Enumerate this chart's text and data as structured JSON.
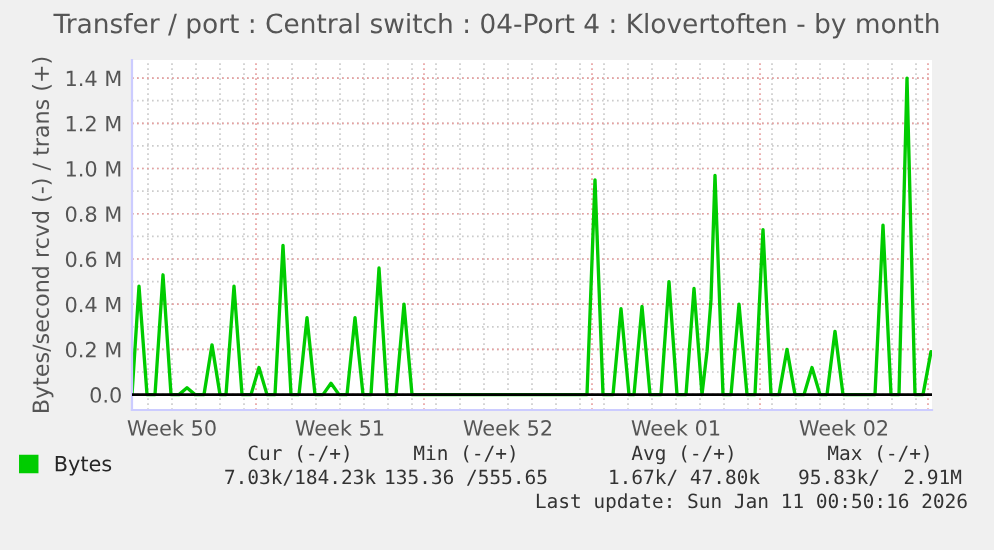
{
  "chart_data": {
    "type": "line",
    "title": "Transfer / port : Central switch : 04-Port 4 : Klovertoften - by month",
    "ylabel": "Bytes/second rcvd (-) / trans (+)",
    "xlim": [
      "2025-12-09T08:00",
      "2026-01-11T16:00"
    ],
    "xticks": [
      {
        "value": "2025-12-11",
        "label": "Week 50"
      },
      {
        "value": "2025-12-18",
        "label": "Week 51"
      },
      {
        "value": "2025-12-25",
        "label": "Week 52"
      },
      {
        "value": "2026-01-01",
        "label": "Week 01"
      },
      {
        "value": "2026-01-08",
        "label": "Week 02"
      }
    ],
    "ylim": [
      -68000,
      1480000
    ],
    "yticks": [
      {
        "value": 0,
        "label": "0.0"
      },
      {
        "value": 200000,
        "label": "0.2 M"
      },
      {
        "value": 400000,
        "label": "0.4 M"
      },
      {
        "value": 600000,
        "label": "0.6 M"
      },
      {
        "value": 800000,
        "label": "0.8 M"
      },
      {
        "value": 1000000,
        "label": "1.0 M"
      },
      {
        "value": 1200000,
        "label": "1.2 M"
      },
      {
        "value": 1400000,
        "label": "1.4 M"
      }
    ],
    "grid": true,
    "legend": "bottom",
    "marker": "none",
    "line_style": "solid",
    "ref_lines": [
      {
        "axis": "y",
        "value": 0,
        "color": "#000000"
      }
    ],
    "series": [
      {
        "name": "Bytes",
        "color": "#00cc00",
        "x": [
          "2025-12-09T08:00",
          "2025-12-09T15:00",
          "2025-12-09T23:00",
          "2025-12-10T07:00",
          "2025-12-10T15:00",
          "2025-12-10T23:00",
          "2025-12-11T07:00",
          "2025-12-11T15:00",
          "2025-12-11T23:00",
          "2025-12-12T08:00",
          "2025-12-12T16:00",
          "2025-12-13T00:00",
          "2025-12-13T06:00",
          "2025-12-13T14:00",
          "2025-12-13T22:00",
          "2025-12-14T07:00",
          "2025-12-14T15:00",
          "2025-12-14T23:00",
          "2025-12-15T07:00",
          "2025-12-15T15:00",
          "2025-12-15T23:00",
          "2025-12-16T07:00",
          "2025-12-16T15:00",
          "2025-12-16T23:00",
          "2025-12-17T07:00",
          "2025-12-17T15:00",
          "2025-12-17T23:00",
          "2025-12-18T07:00",
          "2025-12-18T15:00",
          "2025-12-18T23:00",
          "2025-12-19T07:00",
          "2025-12-19T15:00",
          "2025-12-19T23:00",
          "2025-12-20T08:00",
          "2025-12-20T16:00",
          "2025-12-21T00:00",
          "2025-12-28T07:00",
          "2025-12-28T15:00",
          "2025-12-28T23:00",
          "2025-12-29T09:00",
          "2025-12-29T17:00",
          "2025-12-30T01:00",
          "2025-12-30T06:00",
          "2025-12-30T14:00",
          "2025-12-30T22:00",
          "2025-12-31T09:00",
          "2025-12-31T17:00",
          "2026-01-01T01:00",
          "2026-01-01T10:00",
          "2026-01-01T18:00",
          "2026-01-02T02:00",
          "2026-01-02T07:00",
          "2026-01-02T11:00",
          "2026-01-02T15:00",
          "2026-01-02T23:00",
          "2026-01-03T07:00",
          "2026-01-03T15:00",
          "2026-01-03T23:00",
          "2026-01-04T07:00",
          "2026-01-04T15:00",
          "2026-01-04T23:00",
          "2026-01-05T07:00",
          "2026-01-05T15:00",
          "2026-01-05T23:00",
          "2026-01-06T08:00",
          "2026-01-06T16:00",
          "2026-01-07T00:00",
          "2026-01-07T07:00",
          "2026-01-07T15:00",
          "2026-01-07T23:00",
          "2026-01-09T07:00",
          "2026-01-09T15:00",
          "2026-01-09T23:00",
          "2026-01-10T07:00",
          "2026-01-10T15:00",
          "2026-01-10T23:00",
          "2026-01-11T07:00",
          "2026-01-11T15:00"
        ],
        "values": [
          0,
          480000,
          0,
          0,
          530000,
          0,
          0,
          30000,
          0,
          0,
          220000,
          0,
          0,
          480000,
          0,
          0,
          120000,
          0,
          0,
          660000,
          0,
          0,
          340000,
          0,
          0,
          50000,
          0,
          0,
          340000,
          0,
          0,
          560000,
          0,
          0,
          400000,
          0,
          0,
          950000,
          0,
          0,
          380000,
          0,
          0,
          390000,
          0,
          0,
          500000,
          0,
          0,
          470000,
          0,
          190000,
          420000,
          970000,
          0,
          0,
          400000,
          0,
          0,
          730000,
          0,
          0,
          200000,
          0,
          0,
          120000,
          0,
          0,
          280000,
          0,
          0,
          750000,
          0,
          0,
          1400000,
          0,
          0,
          190000
        ]
      }
    ],
    "annotations": [
      "Cur (-/+)",
      "Min (-/+)",
      "Avg (-/+)",
      "Max (-/+)",
      "7.03k/184.23k",
      "135.36 /555.65",
      "1.67k/ 47.80k",
      "95.83k/  2.91M",
      "Last update: Sun Jan 11 00:50:16 2026"
    ]
  }
}
